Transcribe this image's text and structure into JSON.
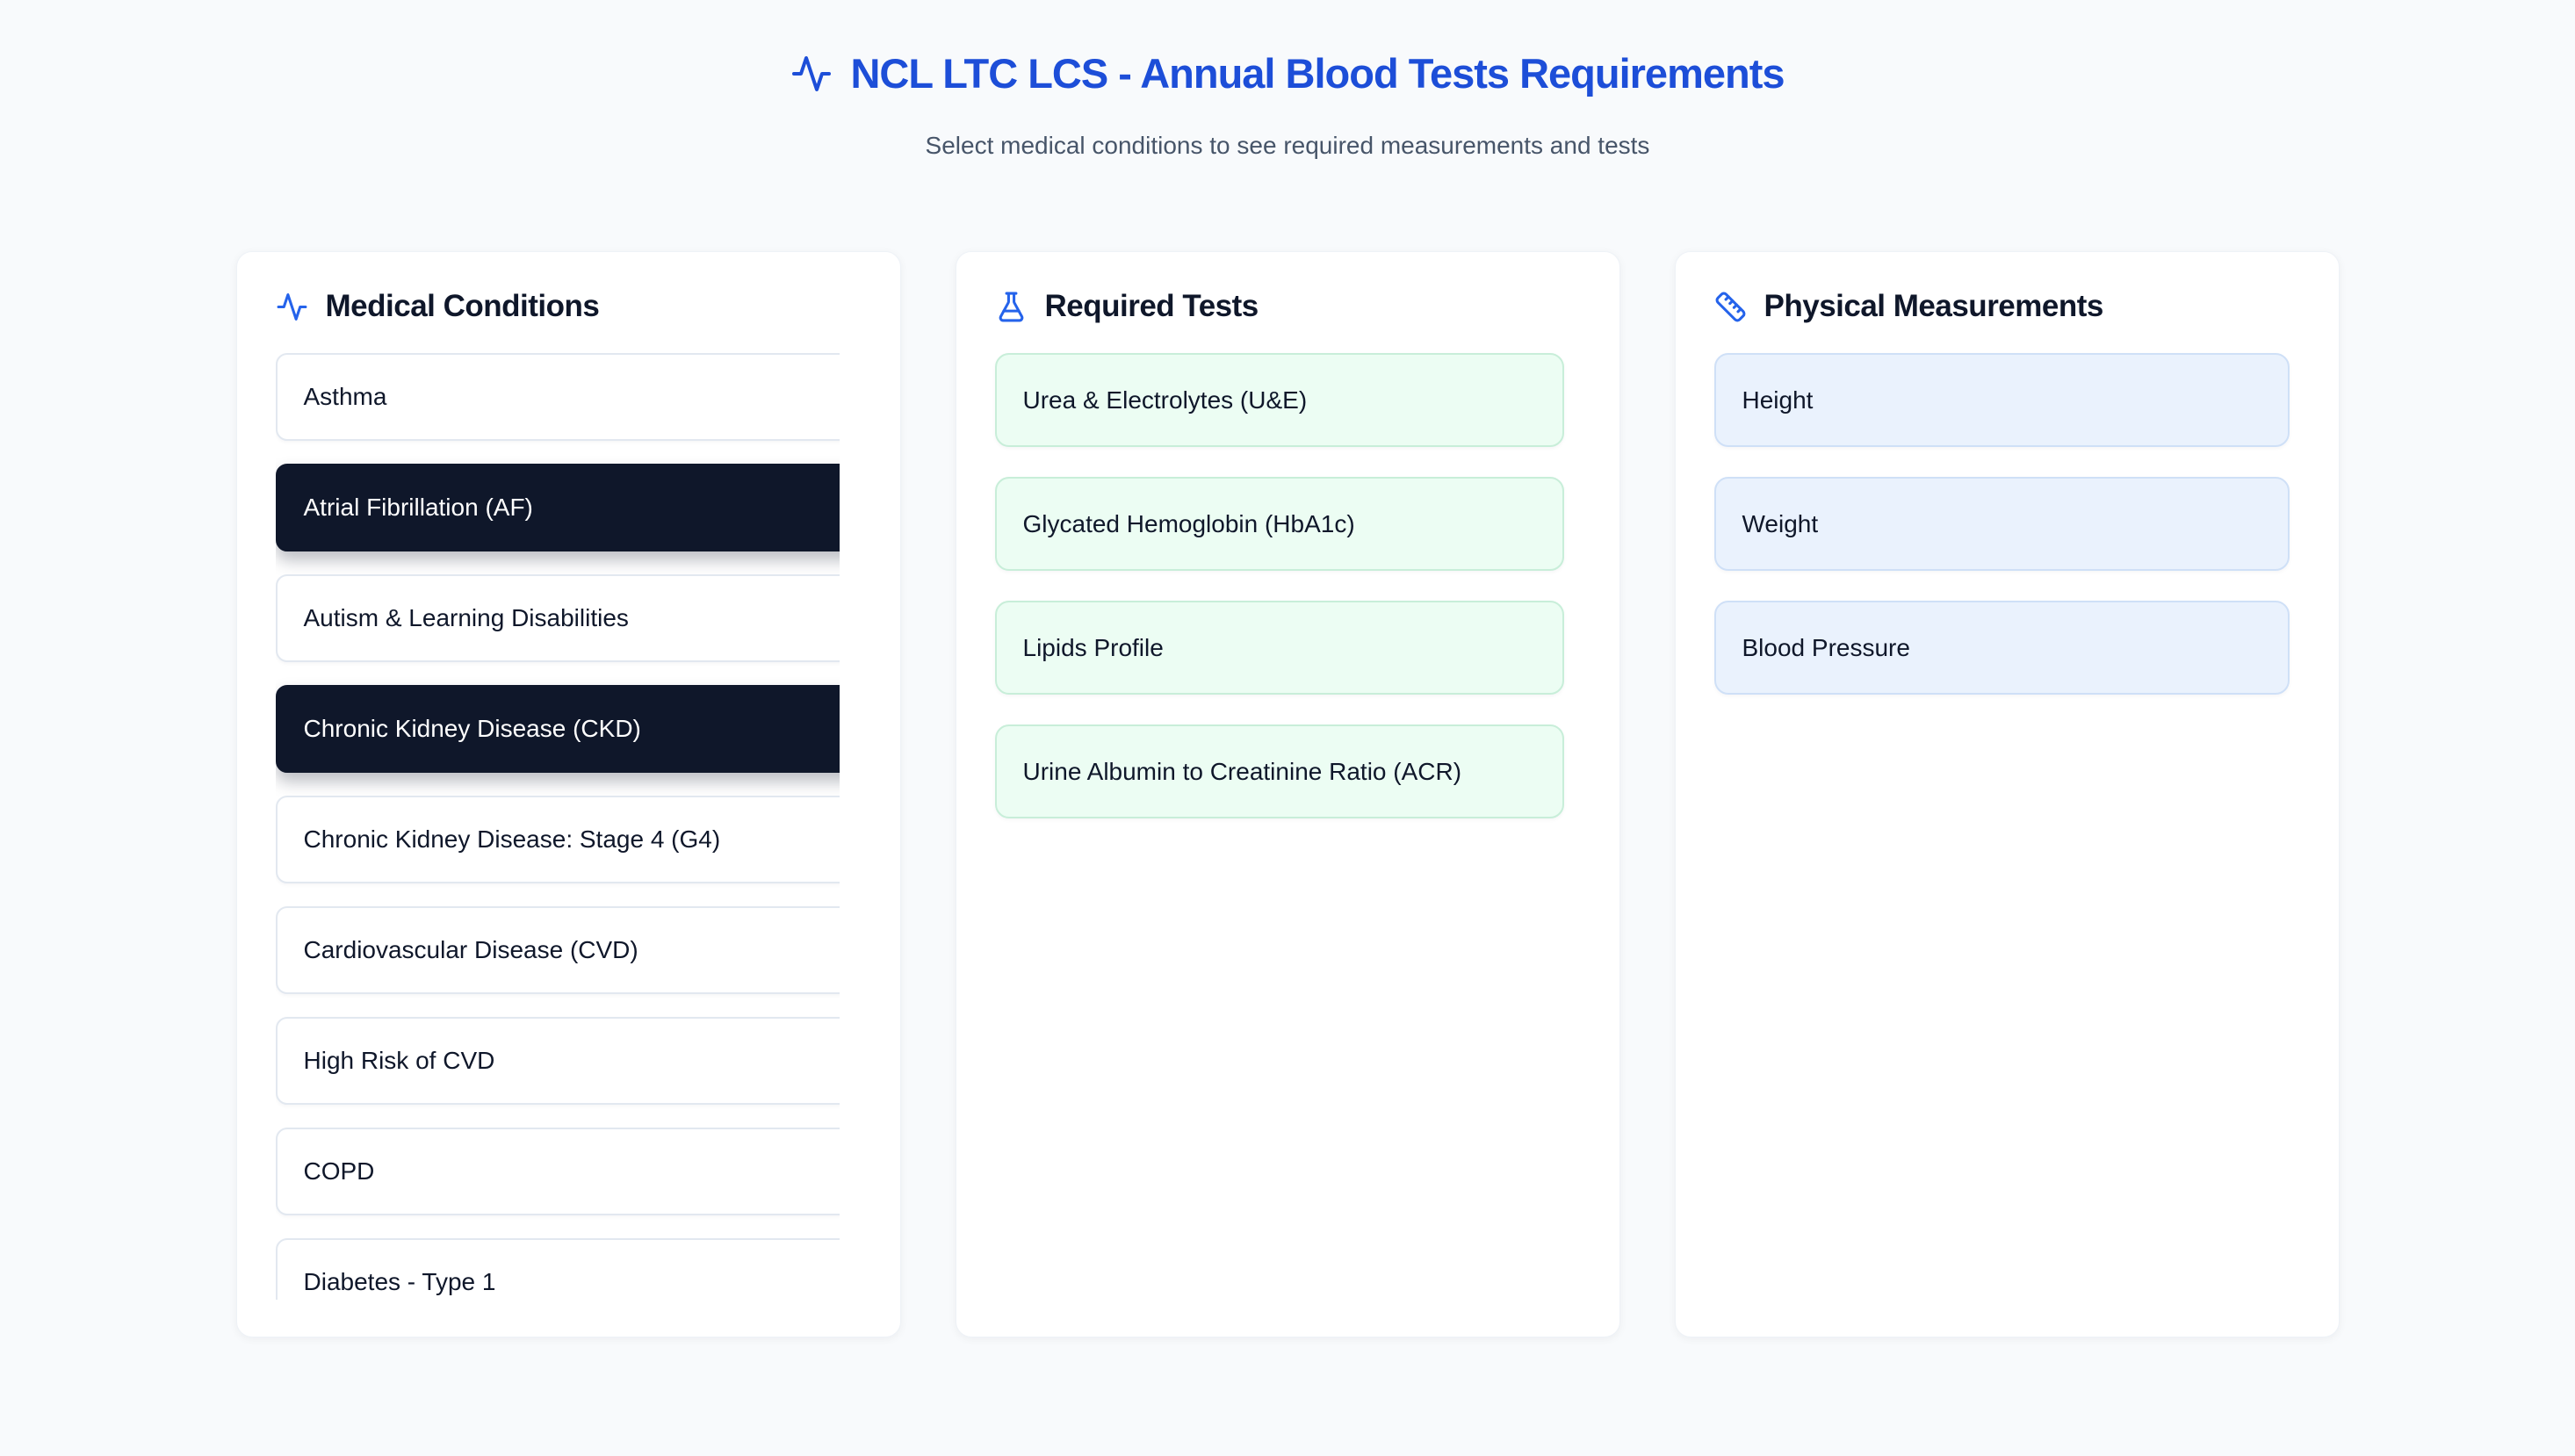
{
  "page": {
    "title": "NCL LTC LCS - Annual Blood Tests Requirements",
    "subtitle": "Select medical conditions to see required measurements and tests"
  },
  "colors": {
    "title_blue": "#1d4ed8",
    "icon_blue": "#2563eb",
    "selected_condition_bg": "#0f172a",
    "test_card_bg": "#ecfdf3",
    "test_card_border": "#c8eed9",
    "measurement_card_bg": "#eaf2fd",
    "measurement_card_border": "#cfe0f7",
    "page_bg": "#f8fafc"
  },
  "panels": {
    "conditions": {
      "title": "Medical Conditions",
      "icon": "activity-icon",
      "items": [
        {
          "label": "Asthma",
          "selected": false
        },
        {
          "label": "Atrial Fibrillation (AF)",
          "selected": true
        },
        {
          "label": "Autism & Learning Disabilities",
          "selected": false
        },
        {
          "label": "Chronic Kidney Disease (CKD)",
          "selected": true
        },
        {
          "label": "Chronic Kidney Disease: Stage 4 (G4)",
          "selected": false
        },
        {
          "label": "Cardiovascular Disease (CVD)",
          "selected": false
        },
        {
          "label": "High Risk of CVD",
          "selected": false
        },
        {
          "label": "COPD",
          "selected": false
        },
        {
          "label": "Diabetes - Type 1",
          "selected": false
        }
      ]
    },
    "tests": {
      "title": "Required Tests",
      "icon": "flask-icon",
      "items": [
        "Urea & Electrolytes (U&E)",
        "Glycated Hemoglobin (HbA1c)",
        "Lipids Profile",
        "Urine Albumin to Creatinine Ratio (ACR)"
      ]
    },
    "measurements": {
      "title": "Physical Measurements",
      "icon": "ruler-icon",
      "items": [
        "Height",
        "Weight",
        "Blood Pressure"
      ]
    }
  }
}
